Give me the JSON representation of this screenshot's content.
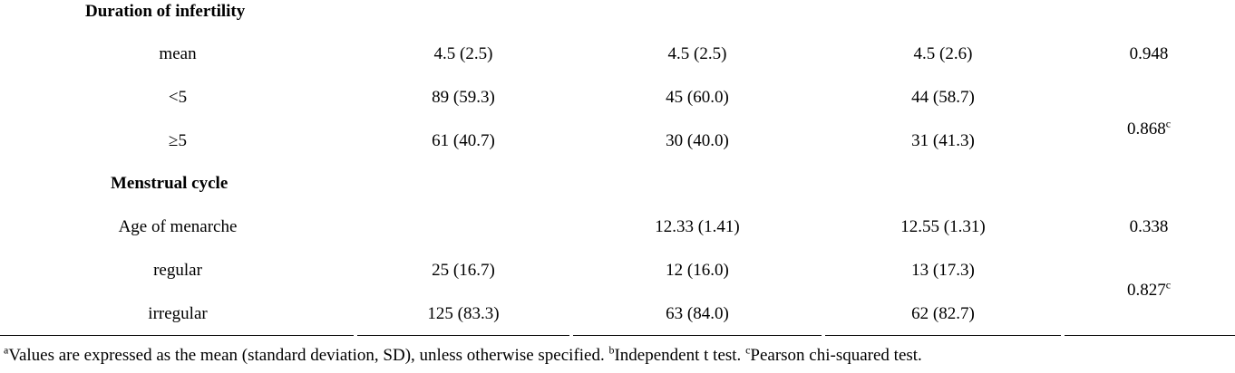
{
  "sections": [
    {
      "heading": "Duration of infertility",
      "rows": [
        {
          "label": "mean",
          "all": "4.5 (2.5)",
          "group1": "4.5 (2.5)",
          "group2": "4.5 (2.6)",
          "p": "0.948",
          "p_sup": ""
        },
        {
          "label": "<5",
          "all": "89 (59.3)",
          "group1": "45 (60.0)",
          "group2": "44 (58.7)"
        },
        {
          "label": "≥5",
          "all": "61 (40.7)",
          "group1": "30 (40.0)",
          "group2": "31 (41.3)"
        }
      ],
      "merged_p": {
        "value": "0.868",
        "sup": "c"
      }
    },
    {
      "heading": "Menstrual cycle",
      "rows": [
        {
          "label": "Age of menarche",
          "all": "",
          "group1": "12.33 (1.41)",
          "group2": "12.55 (1.31)",
          "p": "0.338"
        },
        {
          "label": "regular",
          "all": "25 (16.7)",
          "group1": "12 (16.0)",
          "group2": "13 (17.3)"
        },
        {
          "label": "irregular",
          "all": "125 (83.3)",
          "group1": "63 (84.0)",
          "group2": "62 (82.7)"
        }
      ],
      "merged_p": {
        "value": "0.827",
        "sup": "c"
      }
    }
  ],
  "footnote": {
    "a_marker": "a",
    "a_text": "Values are expressed as the mean (standard deviation, SD), unless otherwise specified. ",
    "b_marker": "b",
    "b_text": "Independent t test. ",
    "c_marker": "c",
    "c_text": "Pearson chi-squared test."
  }
}
